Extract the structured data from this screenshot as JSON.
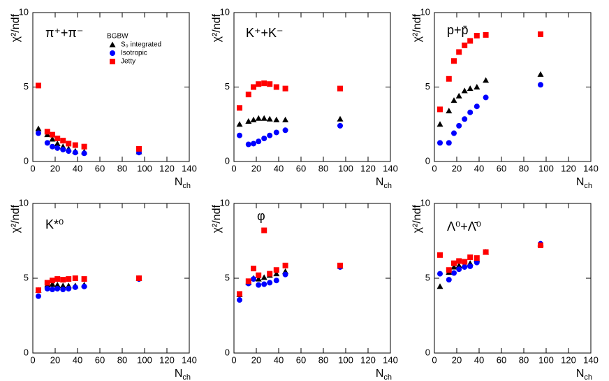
{
  "chart_data": [
    {
      "type": "scatter",
      "label": "π⁺+π⁻",
      "ylabel": "χ²/ndf",
      "xlabel": "N",
      "xlabel_sub": "ch",
      "legend": true,
      "legend_title": "BGBW",
      "xlim": [
        0,
        140
      ],
      "xticks": [
        0,
        20,
        40,
        60,
        80,
        100,
        120,
        140
      ],
      "ylim": [
        0,
        10
      ],
      "yticks": [
        0,
        5,
        10
      ],
      "x": [
        5,
        13,
        17.5,
        22,
        27,
        32,
        38,
        46,
        95
      ],
      "series": [
        {
          "name": "S₀ integrated",
          "color": "#000000",
          "marker": "triangle",
          "values": [
            2.2,
            1.8,
            1.5,
            1.2,
            1.0,
            0.85,
            0.7,
            0.65,
            0.65
          ]
        },
        {
          "name": "Isotropic",
          "color": "#0000ff",
          "marker": "circle",
          "values": [
            1.9,
            1.25,
            1.0,
            0.9,
            0.8,
            0.7,
            0.6,
            0.55,
            0.6
          ]
        },
        {
          "name": "Jetty",
          "color": "#ff0000",
          "marker": "square",
          "values": [
            5.1,
            2.0,
            1.8,
            1.55,
            1.4,
            1.2,
            1.1,
            1.0,
            0.85
          ]
        }
      ]
    },
    {
      "type": "scatter",
      "label": "K⁺+K⁻",
      "ylabel": "χ²/ndf",
      "xlabel": "N",
      "xlabel_sub": "ch",
      "xlim": [
        0,
        140
      ],
      "xticks": [
        0,
        20,
        40,
        60,
        80,
        100,
        120,
        140
      ],
      "ylim": [
        0,
        10
      ],
      "yticks": [
        0,
        5,
        10
      ],
      "x": [
        5,
        13,
        17.5,
        22,
        27,
        32,
        38,
        46,
        95
      ],
      "series": [
        {
          "color": "#000000",
          "marker": "triangle",
          "values": [
            2.5,
            2.7,
            2.8,
            2.9,
            2.9,
            2.85,
            2.8,
            2.8,
            2.85
          ]
        },
        {
          "color": "#0000ff",
          "marker": "circle",
          "values": [
            1.75,
            1.15,
            1.2,
            1.35,
            1.55,
            1.75,
            1.95,
            2.1,
            2.4
          ]
        },
        {
          "color": "#ff0000",
          "marker": "square",
          "values": [
            3.6,
            4.5,
            5.0,
            5.2,
            5.25,
            5.2,
            5.0,
            4.9,
            4.9
          ]
        }
      ]
    },
    {
      "type": "scatter",
      "label": "p+p̄",
      "ylabel": "χ²/ndf",
      "xlabel": "N",
      "xlabel_sub": "ch",
      "xlim": [
        0,
        140
      ],
      "xticks": [
        0,
        20,
        40,
        60,
        80,
        100,
        120,
        140
      ],
      "ylim": [
        0,
        10
      ],
      "yticks": [
        0,
        5,
        10
      ],
      "x": [
        5,
        13,
        17.5,
        22,
        27,
        32,
        38,
        46,
        95
      ],
      "series": [
        {
          "color": "#000000",
          "marker": "triangle",
          "values": [
            2.5,
            3.4,
            4.1,
            4.4,
            4.75,
            4.9,
            5.0,
            5.45,
            5.85
          ]
        },
        {
          "color": "#0000ff",
          "marker": "circle",
          "values": [
            1.25,
            1.25,
            1.9,
            2.4,
            2.85,
            3.3,
            3.7,
            4.3,
            5.15
          ]
        },
        {
          "color": "#ff0000",
          "marker": "square",
          "values": [
            3.5,
            5.55,
            6.75,
            7.35,
            7.8,
            8.1,
            8.45,
            8.5,
            8.55
          ]
        }
      ]
    },
    {
      "type": "scatter",
      "label": "K*⁰",
      "ylabel": "χ²/ndf",
      "xlabel": "N",
      "xlabel_sub": "ch",
      "xlim": [
        0,
        140
      ],
      "xticks": [
        0,
        20,
        40,
        60,
        80,
        100,
        120,
        140
      ],
      "ylim": [
        0,
        10
      ],
      "yticks": [
        0,
        5,
        10
      ],
      "x": [
        5,
        13,
        17.5,
        22,
        27,
        32,
        38,
        46,
        95
      ],
      "series": [
        {
          "color": "#000000",
          "marker": "triangle",
          "values": [
            4.2,
            4.55,
            4.6,
            4.55,
            4.5,
            4.5,
            4.5,
            4.55,
            5.0
          ]
        },
        {
          "color": "#0000ff",
          "marker": "circle",
          "values": [
            3.8,
            4.3,
            4.25,
            4.3,
            4.25,
            4.3,
            4.4,
            4.45,
            4.95
          ]
        },
        {
          "color": "#ff0000",
          "marker": "square",
          "values": [
            4.2,
            4.7,
            4.85,
            4.95,
            4.9,
            4.95,
            5.0,
            4.95,
            5.0
          ]
        }
      ]
    },
    {
      "type": "scatter",
      "label": "φ",
      "ylabel": "χ²/ndf",
      "xlabel": "N",
      "xlabel_sub": "ch",
      "xlim": [
        0,
        140
      ],
      "xticks": [
        0,
        20,
        40,
        60,
        80,
        100,
        120,
        140
      ],
      "ylim": [
        0,
        10
      ],
      "yticks": [
        0,
        5,
        10
      ],
      "x": [
        5,
        13,
        17.5,
        22,
        27,
        32,
        38,
        46,
        95
      ],
      "series": [
        {
          "color": "#000000",
          "marker": "triangle",
          "values": [
            3.9,
            4.7,
            5.0,
            4.95,
            5.05,
            5.2,
            5.3,
            5.45,
            5.8
          ]
        },
        {
          "color": "#0000ff",
          "marker": "circle",
          "values": [
            3.55,
            4.65,
            4.95,
            4.55,
            4.6,
            4.7,
            4.85,
            5.25,
            5.75
          ]
        },
        {
          "color": "#ff0000",
          "marker": "square",
          "values": [
            3.95,
            4.8,
            5.65,
            5.2,
            8.2,
            5.3,
            5.55,
            5.85,
            5.85
          ]
        }
      ]
    },
    {
      "type": "scatter",
      "label": "Λ⁰+Λ̄⁰",
      "ylabel": "χ²/ndf",
      "xlabel": "N",
      "xlabel_sub": "ch",
      "xlim": [
        0,
        140
      ],
      "xticks": [
        0,
        20,
        40,
        60,
        80,
        100,
        120,
        140
      ],
      "ylim": [
        0,
        10
      ],
      "yticks": [
        0,
        5,
        10
      ],
      "x": [
        5,
        13,
        17.5,
        22,
        27,
        32,
        38,
        46,
        95
      ],
      "series": [
        {
          "color": "#000000",
          "marker": "triangle",
          "values": [
            4.45,
            5.4,
            5.75,
            5.85,
            5.9,
            6.0,
            6.25,
            6.75,
            7.3
          ]
        },
        {
          "color": "#0000ff",
          "marker": "circle",
          "values": [
            5.3,
            4.9,
            5.35,
            5.6,
            5.75,
            5.8,
            6.05,
            6.75,
            7.3
          ]
        },
        {
          "color": "#ff0000",
          "marker": "square",
          "values": [
            6.55,
            5.55,
            6.0,
            6.15,
            6.1,
            6.4,
            6.35,
            6.75,
            7.2
          ]
        }
      ]
    }
  ]
}
